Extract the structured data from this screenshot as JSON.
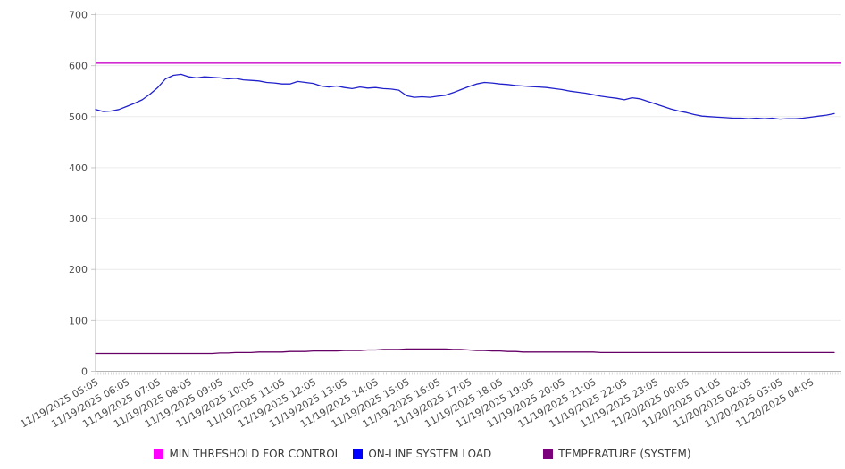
{
  "chart_data": {
    "type": "line",
    "title": "",
    "grid": "horizontal",
    "legend_position": "bottom",
    "ylim": [
      0,
      700
    ],
    "y_ticks": [
      0,
      100,
      200,
      300,
      400,
      500,
      600,
      700
    ],
    "x_minor_tick_count": 287,
    "x_tick_labels": [
      "11/19/2025 05:05",
      "11/19/2025 06:05",
      "11/19/2025 07:05",
      "11/19/2025 08:05",
      "11/19/2025 09:05",
      "11/19/2025 10:05",
      "11/19/2025 11:05",
      "11/19/2025 12:05",
      "11/19/2025 13:05",
      "11/19/2025 14:05",
      "11/19/2025 15:05",
      "11/19/2025 16:05",
      "11/19/2025 17:05",
      "11/19/2025 18:05",
      "11/19/2025 19:05",
      "11/19/2025 20:05",
      "11/19/2025 21:05",
      "11/19/2025 22:05",
      "11/19/2025 23:05",
      "11/20/2025 00:05",
      "11/20/2025 01:05",
      "11/20/2025 02:05",
      "11/20/2025 03:05",
      "11/20/2025 04:05"
    ],
    "series": [
      {
        "name": "MIN THRESHOLD FOR CONTROL",
        "type": "constant",
        "value": 605,
        "line_color": "#d32bd3",
        "legend_color": "#ff00ff"
      },
      {
        "name": "ON-LINE SYSTEM LOAD",
        "type": "line",
        "line_color": "#2121cc",
        "legend_color": "#0000ff",
        "values": [
          514,
          510,
          511,
          514,
          520,
          526,
          533,
          544,
          557,
          574,
          581,
          583,
          578,
          576,
          578,
          577,
          576,
          574,
          575,
          572,
          571,
          570,
          567,
          566,
          564,
          564,
          569,
          567,
          565,
          560,
          558,
          560,
          557,
          555,
          558,
          556,
          557,
          555,
          554,
          552,
          541,
          538,
          539,
          538,
          540,
          542,
          547,
          553,
          559,
          564,
          567,
          566,
          564,
          563,
          561,
          560,
          559,
          558,
          557,
          555,
          553,
          550,
          548,
          546,
          543,
          540,
          538,
          536,
          533,
          537,
          535,
          530,
          525,
          520,
          515,
          511,
          508,
          504,
          501,
          500,
          499,
          498,
          497,
          497,
          496,
          497,
          496,
          497,
          495,
          496,
          496,
          497,
          499,
          501,
          503,
          506
        ]
      },
      {
        "name": "TEMPERATURE (SYSTEM)",
        "type": "line",
        "line_color": "#660066",
        "legend_color": "#7b007b",
        "values": [
          35,
          35,
          35,
          35,
          35,
          35,
          35,
          35,
          35,
          35,
          35,
          35,
          35,
          35,
          35,
          35,
          36,
          36,
          37,
          37,
          37,
          38,
          38,
          38,
          38,
          39,
          39,
          39,
          40,
          40,
          40,
          40,
          41,
          41,
          41,
          42,
          42,
          43,
          43,
          43,
          44,
          44,
          44,
          44,
          44,
          44,
          43,
          43,
          42,
          41,
          41,
          40,
          40,
          39,
          39,
          38,
          38,
          38,
          38,
          38,
          38,
          38,
          38,
          38,
          38,
          37,
          37,
          37,
          37,
          37,
          37,
          37,
          37,
          37,
          37,
          37,
          37,
          37,
          37,
          37,
          37,
          37,
          37,
          37,
          37,
          37,
          37,
          37,
          37,
          37,
          37,
          37,
          37,
          37,
          37,
          37
        ]
      }
    ]
  },
  "legend": {
    "items": [
      {
        "label": "MIN THRESHOLD FOR CONTROL"
      },
      {
        "label": "ON-LINE SYSTEM LOAD"
      },
      {
        "label": "TEMPERATURE (SYSTEM)"
      }
    ]
  }
}
